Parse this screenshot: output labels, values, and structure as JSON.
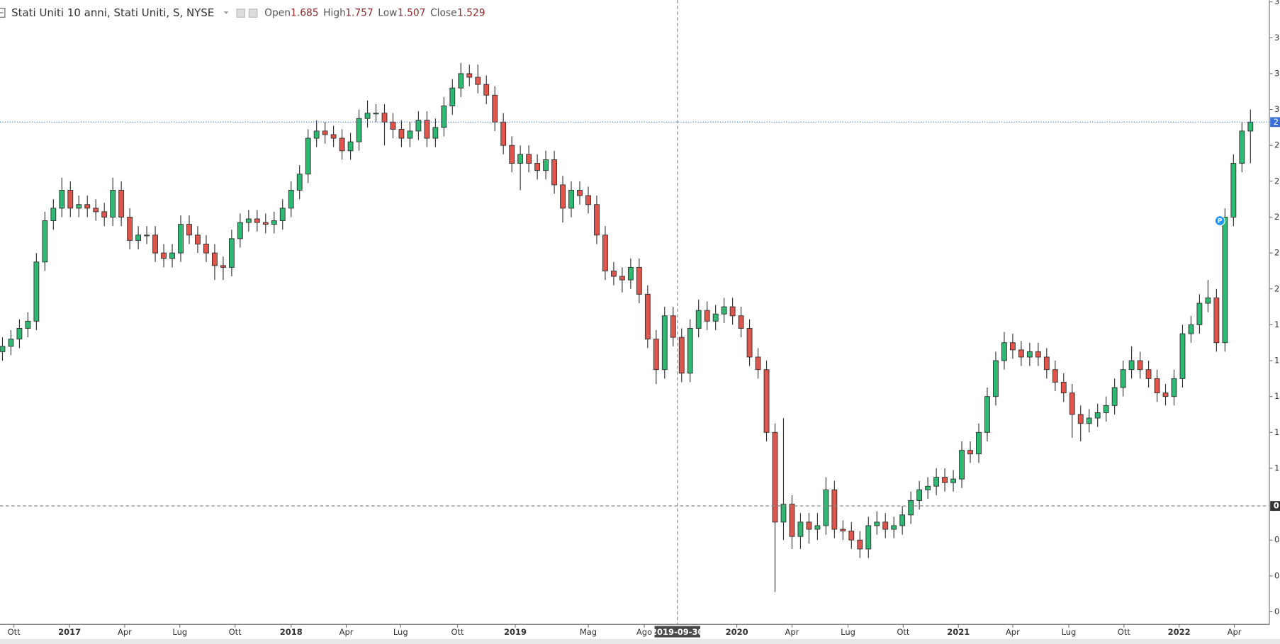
{
  "header": {
    "title": "Stati Uniti 10 anni, Stati Uniti, S, NYSE",
    "open_label": "Open",
    "open_value": "1.685",
    "high_label": "High",
    "high_value": "1.757",
    "low_label": "Low",
    "low_value": "1.507",
    "close_label": "Close",
    "close_value": "1.529"
  },
  "chart_data": {
    "type": "candlestick",
    "up_color": "#2eb872",
    "down_color": "#e0554b",
    "ylim": [
      0.13,
      3.61
    ],
    "yticks": [
      {
        "value": 3.6,
        "label": "3"
      },
      {
        "value": 3.4,
        "label": "3"
      },
      {
        "value": 3.2,
        "label": "3"
      },
      {
        "value": 3.0,
        "label": "3"
      },
      {
        "value": 2.8,
        "label": "2"
      },
      {
        "value": 2.6,
        "label": "2"
      },
      {
        "value": 2.4,
        "label": "2"
      },
      {
        "value": 2.2,
        "label": "2"
      },
      {
        "value": 2.0,
        "label": "2"
      },
      {
        "value": 1.8,
        "label": "1"
      },
      {
        "value": 1.6,
        "label": "1"
      },
      {
        "value": 1.4,
        "label": "1"
      },
      {
        "value": 1.2,
        "label": "1"
      },
      {
        "value": 1.0,
        "label": "1"
      },
      {
        "value": 0.6,
        "label": "0"
      },
      {
        "value": 0.4,
        "label": "0"
      },
      {
        "value": 0.2,
        "label": "0"
      }
    ],
    "xticks": [
      {
        "value": 1.35,
        "label": "Ott"
      },
      {
        "value": 7.9,
        "label": "2017"
      },
      {
        "value": 14.4,
        "label": "Apr"
      },
      {
        "value": 20.9,
        "label": "Lug"
      },
      {
        "value": 27.4,
        "label": "Ott"
      },
      {
        "value": 34.0,
        "label": "2018"
      },
      {
        "value": 40.5,
        "label": "Apr"
      },
      {
        "value": 46.9,
        "label": "Lug"
      },
      {
        "value": 53.6,
        "label": "Ott"
      },
      {
        "value": 60.4,
        "label": "2019"
      },
      {
        "value": 69.0,
        "label": "Mag"
      },
      {
        "value": 75.6,
        "label": "Ago"
      },
      {
        "value": 86.5,
        "label": "2020"
      },
      {
        "value": 93.0,
        "label": "Apr"
      },
      {
        "value": 99.6,
        "label": "Lug"
      },
      {
        "value": 106.1,
        "label": "Ott"
      },
      {
        "value": 112.6,
        "label": "2021"
      },
      {
        "value": 119.0,
        "label": "Apr"
      },
      {
        "value": 125.6,
        "label": "Lug"
      },
      {
        "value": 132.1,
        "label": "Ott"
      },
      {
        "value": 138.6,
        "label": "2022"
      },
      {
        "value": 145.1,
        "label": "Apr"
      }
    ],
    "crosshair": {
      "x": {
        "value": 79.5,
        "label": "2019-09-30"
      },
      "y": {
        "value": 0.79,
        "label": "0"
      }
    },
    "last_price": {
      "value": 2.93,
      "label": "2"
    },
    "marker": {
      "index": 143.4,
      "value": 2.38,
      "label": "P"
    },
    "open": [
      1.65,
      1.68,
      1.72,
      1.78,
      1.82,
      2.15,
      2.38,
      2.45,
      2.55,
      2.45,
      2.47,
      2.45,
      2.43,
      2.4,
      2.55,
      2.4,
      2.27,
      2.3,
      2.3,
      2.2,
      2.17,
      2.2,
      2.36,
      2.3,
      2.25,
      2.2,
      2.13,
      2.12,
      2.28,
      2.37,
      2.39,
      2.37,
      2.36,
      2.38,
      2.45,
      2.55,
      2.64,
      2.84,
      2.88,
      2.86,
      2.84,
      2.77,
      2.82,
      2.95,
      2.98,
      2.98,
      2.93,
      2.89,
      2.84,
      2.88,
      2.94,
      2.84,
      2.9,
      3.02,
      3.12,
      3.2,
      3.18,
      3.14,
      3.08,
      2.93,
      2.8,
      2.7,
      2.75,
      2.7,
      2.66,
      2.72,
      2.58,
      2.45,
      2.55,
      2.52,
      2.47,
      2.3,
      2.1,
      2.07,
      2.05,
      2.12,
      1.97,
      1.72,
      1.55,
      1.85,
      1.73,
      1.53,
      1.78,
      1.88,
      1.82,
      1.86,
      1.9,
      1.85,
      1.78,
      1.62,
      1.55,
      1.2,
      0.7,
      0.8,
      0.62,
      0.7,
      0.66,
      0.68,
      0.88,
      0.66,
      0.65,
      0.6,
      0.55,
      0.68,
      0.7,
      0.66,
      0.68,
      0.74,
      0.82,
      0.88,
      0.9,
      0.95,
      0.92,
      0.94,
      1.1,
      1.08,
      1.2,
      1.4,
      1.6,
      1.7,
      1.66,
      1.62,
      1.65,
      1.62,
      1.55,
      1.48,
      1.42,
      1.3,
      1.25,
      1.28,
      1.31,
      1.35,
      1.45,
      1.55,
      1.6,
      1.55,
      1.5,
      1.42,
      1.4,
      1.5,
      1.75,
      1.8,
      1.92,
      1.95,
      1.7,
      2.4,
      2.7,
      2.88
    ],
    "high": [
      1.73,
      1.77,
      1.83,
      1.87,
      2.2,
      2.43,
      2.5,
      2.62,
      2.6,
      2.52,
      2.52,
      2.5,
      2.48,
      2.62,
      2.6,
      2.45,
      2.35,
      2.35,
      2.35,
      2.25,
      2.25,
      2.41,
      2.41,
      2.35,
      2.3,
      2.25,
      2.18,
      2.33,
      2.42,
      2.44,
      2.44,
      2.42,
      2.43,
      2.5,
      2.6,
      2.69,
      2.89,
      2.94,
      2.93,
      2.91,
      2.89,
      2.87,
      3.0,
      3.05,
      3.03,
      3.03,
      2.98,
      2.94,
      2.93,
      2.99,
      2.99,
      2.95,
      3.07,
      3.17,
      3.26,
      3.25,
      3.25,
      3.19,
      3.13,
      2.98,
      2.85,
      2.8,
      2.8,
      2.75,
      2.77,
      2.77,
      2.63,
      2.6,
      2.6,
      2.57,
      2.52,
      2.35,
      2.15,
      2.12,
      2.17,
      2.17,
      2.02,
      1.77,
      1.9,
      1.9,
      1.78,
      1.83,
      1.94,
      1.93,
      1.91,
      1.95,
      1.95,
      1.9,
      1.83,
      1.67,
      1.6,
      1.25,
      1.28,
      0.85,
      0.75,
      0.75,
      0.75,
      0.95,
      0.93,
      0.71,
      0.7,
      0.65,
      0.73,
      0.76,
      0.75,
      0.73,
      0.79,
      0.87,
      0.93,
      0.95,
      1.0,
      1.0,
      0.99,
      1.15,
      1.15,
      1.25,
      1.45,
      1.65,
      1.76,
      1.75,
      1.71,
      1.7,
      1.7,
      1.67,
      1.6,
      1.53,
      1.47,
      1.35,
      1.33,
      1.36,
      1.4,
      1.5,
      1.6,
      1.68,
      1.65,
      1.6,
      1.55,
      1.47,
      1.55,
      1.8,
      1.85,
      1.97,
      2.05,
      2.0,
      2.45,
      2.75,
      2.93,
      3.0
    ],
    "low": [
      1.6,
      1.63,
      1.67,
      1.73,
      1.77,
      2.1,
      2.33,
      2.4,
      2.4,
      2.4,
      2.4,
      2.38,
      2.35,
      2.35,
      2.35,
      2.22,
      2.22,
      2.25,
      2.15,
      2.12,
      2.12,
      2.15,
      2.25,
      2.2,
      2.15,
      2.05,
      2.05,
      2.07,
      2.23,
      2.32,
      2.32,
      2.31,
      2.31,
      2.33,
      2.4,
      2.5,
      2.59,
      2.79,
      2.81,
      2.79,
      2.72,
      2.72,
      2.77,
      2.9,
      2.93,
      2.8,
      2.84,
      2.79,
      2.79,
      2.83,
      2.79,
      2.79,
      2.85,
      2.97,
      3.07,
      3.13,
      3.09,
      3.03,
      2.88,
      2.75,
      2.65,
      2.55,
      2.65,
      2.61,
      2.61,
      2.53,
      2.37,
      2.4,
      2.47,
      2.42,
      2.25,
      2.05,
      2.02,
      1.98,
      2.0,
      1.92,
      1.67,
      1.47,
      1.5,
      1.68,
      1.48,
      1.48,
      1.73,
      1.77,
      1.77,
      1.81,
      1.8,
      1.73,
      1.57,
      1.5,
      1.15,
      0.31,
      0.6,
      0.55,
      0.55,
      0.58,
      0.6,
      0.63,
      0.61,
      0.6,
      0.55,
      0.5,
      0.5,
      0.63,
      0.61,
      0.61,
      0.63,
      0.69,
      0.77,
      0.83,
      0.85,
      0.87,
      0.87,
      0.89,
      1.03,
      1.03,
      1.15,
      1.35,
      1.55,
      1.61,
      1.57,
      1.57,
      1.57,
      1.5,
      1.43,
      1.37,
      1.17,
      1.15,
      1.2,
      1.23,
      1.26,
      1.3,
      1.4,
      1.5,
      1.5,
      1.45,
      1.37,
      1.35,
      1.35,
      1.45,
      1.7,
      1.75,
      1.87,
      1.65,
      1.65,
      2.35,
      2.65,
      2.7
    ],
    "close": [
      1.68,
      1.72,
      1.78,
      1.82,
      2.15,
      2.38,
      2.45,
      2.55,
      2.45,
      2.47,
      2.45,
      2.43,
      2.4,
      2.55,
      2.4,
      2.27,
      2.3,
      2.3,
      2.2,
      2.17,
      2.2,
      2.36,
      2.3,
      2.25,
      2.2,
      2.13,
      2.12,
      2.28,
      2.37,
      2.39,
      2.37,
      2.36,
      2.38,
      2.45,
      2.55,
      2.64,
      2.84,
      2.88,
      2.86,
      2.84,
      2.77,
      2.82,
      2.95,
      2.98,
      2.98,
      2.93,
      2.89,
      2.84,
      2.88,
      2.94,
      2.84,
      2.9,
      3.02,
      3.12,
      3.2,
      3.18,
      3.14,
      3.08,
      2.93,
      2.8,
      2.7,
      2.75,
      2.7,
      2.66,
      2.72,
      2.58,
      2.45,
      2.55,
      2.52,
      2.47,
      2.3,
      2.1,
      2.07,
      2.05,
      2.12,
      1.97,
      1.72,
      1.55,
      1.85,
      1.73,
      1.53,
      1.78,
      1.88,
      1.82,
      1.86,
      1.9,
      1.85,
      1.78,
      1.62,
      1.55,
      1.2,
      0.7,
      0.8,
      0.62,
      0.7,
      0.66,
      0.68,
      0.88,
      0.66,
      0.65,
      0.6,
      0.55,
      0.68,
      0.7,
      0.66,
      0.68,
      0.74,
      0.82,
      0.88,
      0.9,
      0.95,
      0.92,
      0.94,
      1.1,
      1.08,
      1.2,
      1.4,
      1.6,
      1.7,
      1.66,
      1.62,
      1.65,
      1.62,
      1.55,
      1.48,
      1.42,
      1.3,
      1.25,
      1.28,
      1.31,
      1.35,
      1.45,
      1.55,
      1.6,
      1.55,
      1.5,
      1.42,
      1.4,
      1.5,
      1.75,
      1.8,
      1.92,
      1.95,
      1.7,
      2.4,
      2.7,
      2.88,
      2.93
    ]
  }
}
